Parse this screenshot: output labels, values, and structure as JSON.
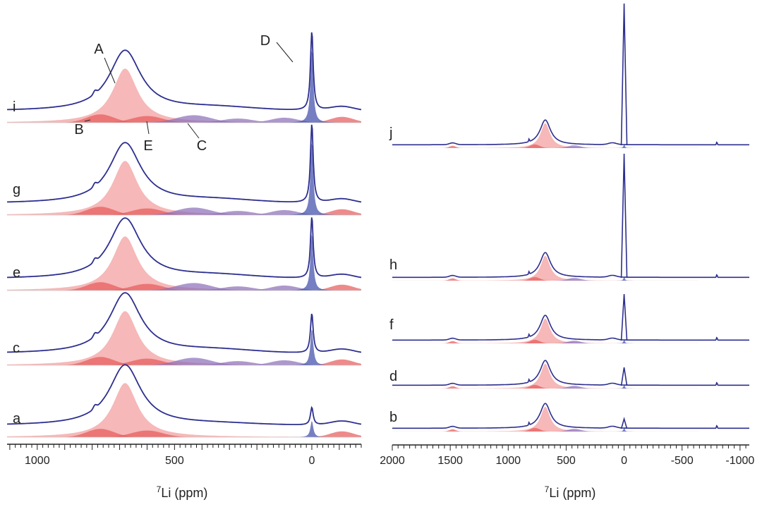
{
  "colors": {
    "trace": "#2d2f8f",
    "fit_red": "#e85858",
    "fit_pink": "#f29a9a",
    "fit_purple": "#8a6cb8",
    "fit_blue": "#3a48a8",
    "axis": "#222222"
  },
  "chart_data": [
    {
      "type": "line",
      "panel": "left",
      "xlabel_superscript": "7",
      "xlabel": "Li (ppm)",
      "xlim": [
        1110,
        -180
      ],
      "x_ticks": [
        1000,
        500,
        0
      ],
      "x_tick_labels": [
        "1000",
        "500",
        "0"
      ],
      "grid": false,
      "series": [
        {
          "name": "i",
          "central_peak": 0.6,
          "D_peak": 0.9,
          "C_area": true
        },
        {
          "name": "g",
          "central_peak": 0.6,
          "D_peak": 0.9,
          "C_area": true
        },
        {
          "name": "e",
          "central_peak": 0.6,
          "D_peak": 0.7,
          "C_area": true
        },
        {
          "name": "c",
          "central_peak": 0.6,
          "D_peak": 0.45,
          "C_area": true
        },
        {
          "name": "a",
          "central_peak": 0.65,
          "D_peak": 0.2,
          "C_area": false
        }
      ],
      "components": [
        {
          "name": "A",
          "shift_ppm": 680
        },
        {
          "name": "B",
          "shift_ppm": 770
        },
        {
          "name": "C",
          "shift_ppm": 430
        },
        {
          "name": "D",
          "shift_ppm": 0
        },
        {
          "name": "E",
          "shift_ppm": 600
        }
      ]
    },
    {
      "type": "line",
      "panel": "right",
      "xlabel_superscript": "7",
      "xlabel": "Li (ppm)",
      "xlim": [
        2000,
        -1080
      ],
      "x_ticks": [
        2000,
        1500,
        1000,
        500,
        0,
        -500,
        -1000
      ],
      "x_tick_labels": [
        "2000",
        "1500",
        "1000",
        "500",
        "0",
        "-500",
        "-1000"
      ],
      "grid": false,
      "series": [
        {
          "name": "j",
          "central_peak": 0.25,
          "D_peak": 1.0
        },
        {
          "name": "h",
          "central_peak": 0.25,
          "D_peak": 1.0
        },
        {
          "name": "f",
          "central_peak": 0.25,
          "D_peak": 0.6
        },
        {
          "name": "d",
          "central_peak": 0.25,
          "D_peak": 0.15
        },
        {
          "name": "b",
          "central_peak": 0.25,
          "D_peak": 0.08
        }
      ]
    }
  ]
}
